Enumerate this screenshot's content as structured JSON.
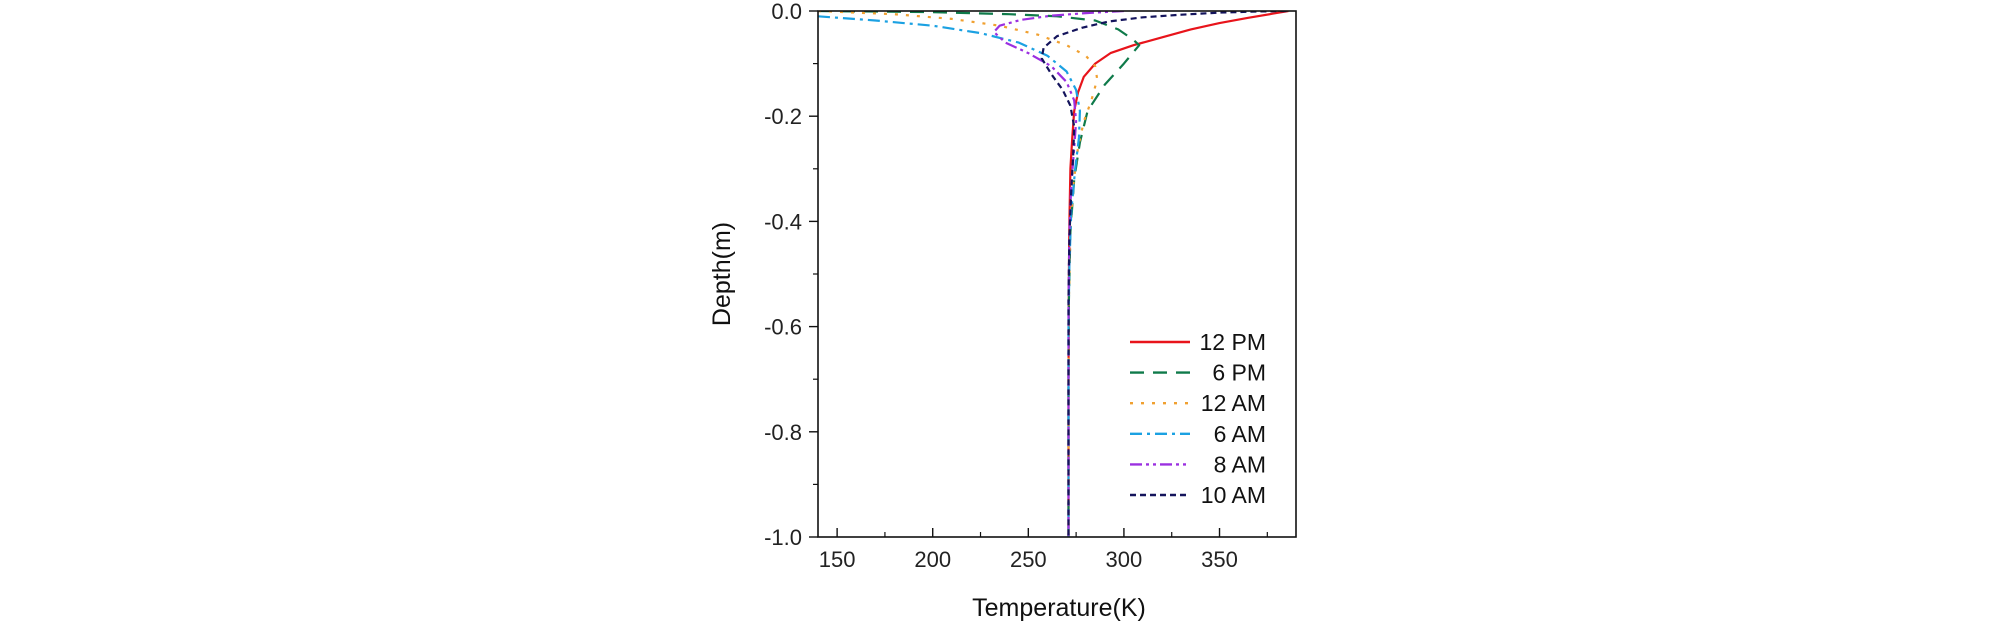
{
  "chart_data": {
    "type": "line",
    "title": "",
    "xlabel": "Temperature(K)",
    "ylabel": "Depth(m)",
    "xlim": [
      140,
      390
    ],
    "ylim": [
      -1.0,
      0.0
    ],
    "x_ticks": [
      150,
      200,
      250,
      300,
      350
    ],
    "x_tick_labels": [
      "150",
      "200",
      "250",
      "300",
      "350"
    ],
    "y_ticks": [
      0.0,
      -0.2,
      -0.4,
      -0.6,
      -0.8,
      -1.0
    ],
    "y_tick_labels": [
      "0.0",
      "-0.2",
      "-0.4",
      "-0.6",
      "-0.8",
      "-1.0"
    ],
    "grid": false,
    "legend_position": "bottom-right",
    "series": [
      {
        "name": "12 PM",
        "color": "#e8141b",
        "dash": "solid",
        "points": [
          [
            386,
            0.0
          ],
          [
            378,
            -0.005
          ],
          [
            365,
            -0.013
          ],
          [
            350,
            -0.023
          ],
          [
            335,
            -0.035
          ],
          [
            320,
            -0.05
          ],
          [
            305,
            -0.065
          ],
          [
            293,
            -0.08
          ],
          [
            285,
            -0.1
          ],
          [
            279,
            -0.125
          ],
          [
            276,
            -0.155
          ],
          [
            274,
            -0.19
          ],
          [
            273,
            -0.24
          ],
          [
            272,
            -0.3
          ],
          [
            271.5,
            -0.4
          ],
          [
            271.2,
            -0.5
          ],
          [
            271,
            -0.7
          ],
          [
            271,
            -1.0
          ]
        ]
      },
      {
        "name": "6 PM",
        "color": "#0f7a4a",
        "dash": "long-dash",
        "points": [
          [
            140,
            0.0
          ],
          [
            200,
            -0.002
          ],
          [
            240,
            -0.006
          ],
          [
            265,
            -0.01
          ],
          [
            285,
            -0.018
          ],
          [
            297,
            -0.035
          ],
          [
            305,
            -0.055
          ],
          [
            308,
            -0.065
          ],
          [
            300,
            -0.1
          ],
          [
            290,
            -0.14
          ],
          [
            281,
            -0.19
          ],
          [
            277,
            -0.25
          ],
          [
            274,
            -0.32
          ],
          [
            272,
            -0.42
          ],
          [
            271.2,
            -0.55
          ],
          [
            271,
            -0.7
          ],
          [
            271,
            -1.0
          ]
        ]
      },
      {
        "name": "12 AM",
        "color": "#f0a030",
        "dash": "dotted",
        "points": [
          [
            140,
            0.0
          ],
          [
            180,
            -0.006
          ],
          [
            210,
            -0.015
          ],
          [
            235,
            -0.028
          ],
          [
            255,
            -0.045
          ],
          [
            270,
            -0.065
          ],
          [
            280,
            -0.085
          ],
          [
            285,
            -0.105
          ],
          [
            286,
            -0.13
          ],
          [
            283,
            -0.17
          ],
          [
            279,
            -0.21
          ],
          [
            276,
            -0.26
          ],
          [
            273.5,
            -0.33
          ],
          [
            272,
            -0.42
          ],
          [
            271.2,
            -0.55
          ],
          [
            271,
            -0.7
          ],
          [
            271,
            -1.0
          ]
        ]
      },
      {
        "name": "6 AM",
        "color": "#1ba1e2",
        "dash": "dash-dot",
        "points": [
          [
            140,
            -0.01
          ],
          [
            170,
            -0.018
          ],
          [
            200,
            -0.028
          ],
          [
            225,
            -0.042
          ],
          [
            245,
            -0.06
          ],
          [
            260,
            -0.085
          ],
          [
            270,
            -0.115
          ],
          [
            275,
            -0.15
          ],
          [
            277,
            -0.19
          ],
          [
            276.5,
            -0.24
          ],
          [
            274.5,
            -0.3
          ],
          [
            272.5,
            -0.38
          ],
          [
            271.5,
            -0.48
          ],
          [
            271,
            -0.6
          ],
          [
            271,
            -1.0
          ]
        ]
      },
      {
        "name": "8 AM",
        "color": "#9b30e0",
        "dash": "dash-dot-dot",
        "points": [
          [
            300,
            0.0
          ],
          [
            280,
            -0.004
          ],
          [
            262,
            -0.009
          ],
          [
            246,
            -0.017
          ],
          [
            235,
            -0.028
          ],
          [
            232,
            -0.04
          ],
          [
            238,
            -0.06
          ],
          [
            250,
            -0.08
          ],
          [
            262,
            -0.105
          ],
          [
            270,
            -0.135
          ],
          [
            274,
            -0.17
          ],
          [
            275,
            -0.21
          ],
          [
            274,
            -0.26
          ],
          [
            272.5,
            -0.33
          ],
          [
            271.5,
            -0.42
          ],
          [
            271,
            -0.55
          ],
          [
            271,
            -1.0
          ]
        ]
      },
      {
        "name": "10 AM",
        "color": "#14145c",
        "dash": "short-dash",
        "points": [
          [
            385,
            0.0
          ],
          [
            370,
            -0.001
          ],
          [
            350,
            -0.003
          ],
          [
            330,
            -0.007
          ],
          [
            310,
            -0.012
          ],
          [
            292,
            -0.02
          ],
          [
            278,
            -0.032
          ],
          [
            265,
            -0.048
          ],
          [
            258,
            -0.07
          ],
          [
            257,
            -0.09
          ],
          [
            262,
            -0.12
          ],
          [
            268,
            -0.15
          ],
          [
            272,
            -0.18
          ],
          [
            274,
            -0.22
          ],
          [
            273.5,
            -0.27
          ],
          [
            272.5,
            -0.34
          ],
          [
            271.5,
            -0.43
          ],
          [
            271,
            -0.55
          ],
          [
            271,
            -1.0
          ]
        ]
      }
    ]
  }
}
